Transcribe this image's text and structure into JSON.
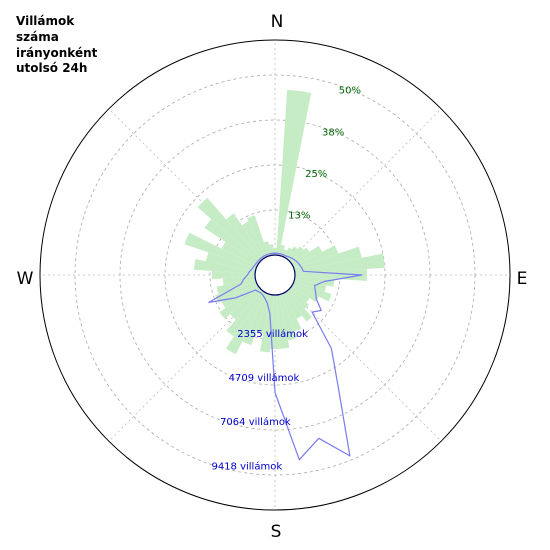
{
  "title_lines": [
    "Villámok",
    "száma",
    "irányonként",
    "utolsó  24h"
  ],
  "compass": {
    "north": "N",
    "east": "E",
    "south": "S",
    "west": "W"
  },
  "chart_data": {
    "type": "polar-area",
    "sectors": 48,
    "sector_width_deg": 7.5,
    "direction_start": "N",
    "direction_rotation": "clockwise",
    "percent_ring_labels": [
      "13%",
      "25%",
      "38%",
      "50%"
    ],
    "percent_ring_values": [
      12.5,
      25,
      37.5,
      50
    ],
    "count_ring_labels": [
      "2355 villámok",
      "4709 villámok",
      "7064 villámok",
      "9418 villámok"
    ],
    "count_ring_values": [
      2355,
      4709,
      7064,
      9418
    ],
    "percent_series": {
      "unit": "%",
      "color": "#c6ecc6",
      "values": [
        2,
        46,
        3,
        2,
        3,
        4,
        5,
        6,
        9,
        13,
        19,
        25,
        20,
        11,
        9,
        11,
        8,
        6,
        7,
        10,
        8,
        11,
        13,
        15,
        15,
        16,
        11,
        15,
        19,
        15,
        11,
        13,
        11,
        12,
        11,
        9,
        12,
        17,
        14,
        21,
        11,
        18,
        23,
        15,
        11,
        12,
        4,
        3
      ]
    },
    "count_series": {
      "unit": "villámok",
      "color": "#7b7bf0",
      "values": [
        100,
        100,
        100,
        100,
        100,
        150,
        200,
        250,
        300,
        350,
        400,
        450,
        3500,
        1550,
        1100,
        1250,
        1450,
        2000,
        1700,
        3800,
        5500,
        9200,
        7800,
        8700,
        5100,
        1000,
        500,
        300,
        200,
        150,
        180,
        250,
        1350,
        2700,
        800,
        600,
        400,
        300,
        200,
        150,
        120,
        110,
        100,
        100,
        100,
        100,
        100,
        100
      ]
    }
  }
}
